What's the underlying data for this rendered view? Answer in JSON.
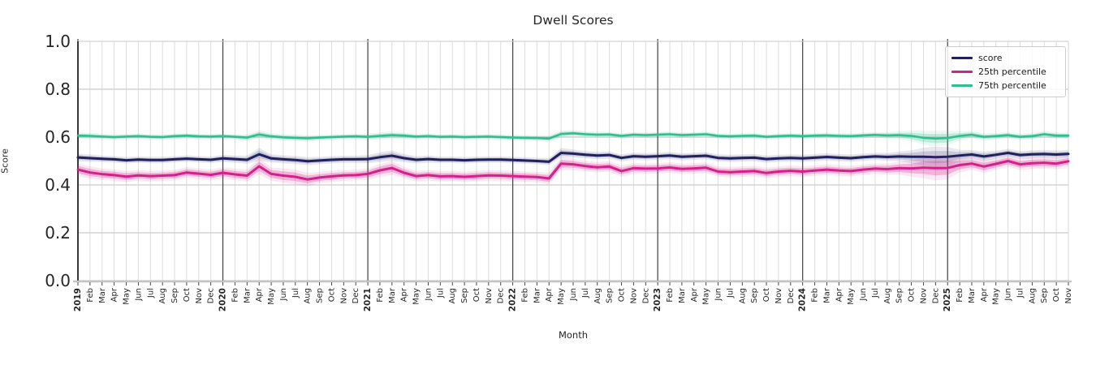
{
  "chart_data": {
    "type": "line",
    "title": "Dwell Scores",
    "xlabel": "Month",
    "ylabel": "Score",
    "ylim": [
      0.0,
      1.0
    ],
    "yticks": [
      0.0,
      0.2,
      0.4,
      0.6,
      0.8,
      1.0
    ],
    "grid": true,
    "legend_position": "upper-right",
    "x_tick_labels": [
      "2019",
      "Feb",
      "Mar",
      "Apr",
      "May",
      "Jun",
      "Jul",
      "Aug",
      "Sep",
      "Oct",
      "Nov",
      "Dec",
      "2020",
      "Feb",
      "Mar",
      "Apr",
      "May",
      "Jun",
      "Jul",
      "Aug",
      "Sep",
      "Oct",
      "Nov",
      "Dec",
      "2021",
      "Feb",
      "Mar",
      "Apr",
      "May",
      "Jun",
      "Jul",
      "Aug",
      "Sep",
      "Oct",
      "Nov",
      "Dec",
      "2022",
      "Feb",
      "Mar",
      "Apr",
      "May",
      "Jun",
      "Jul",
      "Aug",
      "Sep",
      "Oct",
      "Nov",
      "Dec",
      "2023",
      "Feb",
      "Mar",
      "Apr",
      "May",
      "Jun",
      "Jul",
      "Aug",
      "Sep",
      "Oct",
      "Nov",
      "Dec",
      "2024",
      "Feb",
      "Mar",
      "Apr",
      "May",
      "Jun",
      "Jul",
      "Aug",
      "Sep",
      "Oct",
      "Nov",
      "Dec",
      "2025",
      "Feb",
      "Mar",
      "Apr",
      "May",
      "Jun",
      "Jul",
      "Aug",
      "Sep",
      "Oct",
      "Nov"
    ],
    "series": [
      {
        "name": "score",
        "color": "#21205f",
        "band_opacity": 0.16,
        "values": [
          0.515,
          0.512,
          0.509,
          0.507,
          0.503,
          0.506,
          0.504,
          0.504,
          0.507,
          0.51,
          0.507,
          0.505,
          0.511,
          0.508,
          0.505,
          0.528,
          0.511,
          0.507,
          0.504,
          0.499,
          0.502,
          0.505,
          0.507,
          0.507,
          0.508,
          0.516,
          0.522,
          0.512,
          0.505,
          0.508,
          0.505,
          0.505,
          0.503,
          0.505,
          0.506,
          0.506,
          0.504,
          0.502,
          0.5,
          0.497,
          0.534,
          0.531,
          0.526,
          0.523,
          0.525,
          0.513,
          0.52,
          0.518,
          0.52,
          0.523,
          0.518,
          0.52,
          0.522,
          0.513,
          0.511,
          0.513,
          0.514,
          0.508,
          0.511,
          0.513,
          0.511,
          0.514,
          0.517,
          0.514,
          0.512,
          0.516,
          0.519,
          0.517,
          0.519,
          0.518,
          0.518,
          0.516,
          0.518,
          0.523,
          0.527,
          0.519,
          0.526,
          0.534,
          0.525,
          0.528,
          0.529,
          0.527,
          0.53
        ],
        "band": [
          0.01,
          0.009,
          0.008,
          0.008,
          0.008,
          0.008,
          0.008,
          0.008,
          0.008,
          0.008,
          0.008,
          0.008,
          0.009,
          0.009,
          0.01,
          0.016,
          0.01,
          0.01,
          0.01,
          0.01,
          0.009,
          0.009,
          0.009,
          0.009,
          0.01,
          0.012,
          0.013,
          0.01,
          0.009,
          0.009,
          0.008,
          0.008,
          0.008,
          0.008,
          0.008,
          0.008,
          0.008,
          0.008,
          0.008,
          0.009,
          0.012,
          0.01,
          0.009,
          0.009,
          0.009,
          0.009,
          0.009,
          0.009,
          0.009,
          0.009,
          0.009,
          0.009,
          0.009,
          0.009,
          0.009,
          0.009,
          0.009,
          0.009,
          0.009,
          0.009,
          0.009,
          0.009,
          0.009,
          0.009,
          0.009,
          0.009,
          0.009,
          0.01,
          0.012,
          0.016,
          0.022,
          0.026,
          0.024,
          0.014,
          0.011,
          0.012,
          0.01,
          0.01,
          0.01,
          0.01,
          0.01,
          0.01,
          0.01
        ]
      },
      {
        "name": "25th percentile",
        "color": "#d3208b",
        "band_opacity": 0.26,
        "values": [
          0.464,
          0.452,
          0.445,
          0.441,
          0.435,
          0.44,
          0.437,
          0.439,
          0.441,
          0.452,
          0.447,
          0.442,
          0.451,
          0.444,
          0.439,
          0.478,
          0.446,
          0.439,
          0.434,
          0.423,
          0.431,
          0.436,
          0.44,
          0.441,
          0.446,
          0.461,
          0.471,
          0.451,
          0.437,
          0.441,
          0.436,
          0.437,
          0.434,
          0.437,
          0.44,
          0.439,
          0.437,
          0.435,
          0.433,
          0.427,
          0.489,
          0.486,
          0.479,
          0.474,
          0.477,
          0.458,
          0.47,
          0.468,
          0.469,
          0.473,
          0.467,
          0.469,
          0.472,
          0.456,
          0.453,
          0.456,
          0.458,
          0.45,
          0.456,
          0.459,
          0.456,
          0.46,
          0.464,
          0.46,
          0.458,
          0.464,
          0.468,
          0.466,
          0.47,
          0.469,
          0.472,
          0.47,
          0.471,
          0.483,
          0.489,
          0.477,
          0.488,
          0.5,
          0.486,
          0.491,
          0.493,
          0.489,
          0.499
        ],
        "band": [
          0.016,
          0.015,
          0.014,
          0.014,
          0.014,
          0.013,
          0.013,
          0.013,
          0.013,
          0.013,
          0.013,
          0.013,
          0.014,
          0.014,
          0.015,
          0.02,
          0.016,
          0.018,
          0.018,
          0.016,
          0.014,
          0.014,
          0.013,
          0.013,
          0.014,
          0.016,
          0.017,
          0.014,
          0.013,
          0.013,
          0.013,
          0.013,
          0.013,
          0.013,
          0.013,
          0.013,
          0.013,
          0.013,
          0.013,
          0.014,
          0.016,
          0.014,
          0.013,
          0.013,
          0.013,
          0.014,
          0.013,
          0.013,
          0.013,
          0.013,
          0.013,
          0.013,
          0.013,
          0.013,
          0.013,
          0.013,
          0.013,
          0.013,
          0.013,
          0.013,
          0.013,
          0.013,
          0.013,
          0.013,
          0.013,
          0.013,
          0.013,
          0.014,
          0.016,
          0.02,
          0.026,
          0.03,
          0.028,
          0.018,
          0.015,
          0.016,
          0.014,
          0.014,
          0.014,
          0.014,
          0.014,
          0.014,
          0.014
        ]
      },
      {
        "name": "75th percentile",
        "color": "#2fbf8f",
        "band_opacity": 0.24,
        "values": [
          0.606,
          0.605,
          0.602,
          0.6,
          0.602,
          0.604,
          0.601,
          0.6,
          0.604,
          0.606,
          0.603,
          0.602,
          0.604,
          0.601,
          0.598,
          0.611,
          0.603,
          0.599,
          0.597,
          0.595,
          0.598,
          0.6,
          0.602,
          0.603,
          0.601,
          0.605,
          0.608,
          0.606,
          0.602,
          0.604,
          0.601,
          0.602,
          0.6,
          0.601,
          0.602,
          0.6,
          0.598,
          0.597,
          0.596,
          0.594,
          0.613,
          0.616,
          0.612,
          0.61,
          0.611,
          0.605,
          0.61,
          0.608,
          0.61,
          0.612,
          0.608,
          0.61,
          0.612,
          0.605,
          0.603,
          0.605,
          0.606,
          0.601,
          0.604,
          0.606,
          0.604,
          0.606,
          0.607,
          0.605,
          0.604,
          0.607,
          0.609,
          0.607,
          0.608,
          0.605,
          0.597,
          0.594,
          0.596,
          0.605,
          0.61,
          0.601,
          0.604,
          0.608,
          0.601,
          0.604,
          0.612,
          0.606,
          0.606
        ],
        "band": [
          0.008,
          0.008,
          0.007,
          0.007,
          0.007,
          0.007,
          0.007,
          0.007,
          0.007,
          0.007,
          0.007,
          0.007,
          0.007,
          0.007,
          0.008,
          0.01,
          0.008,
          0.008,
          0.008,
          0.008,
          0.007,
          0.007,
          0.007,
          0.007,
          0.008,
          0.009,
          0.009,
          0.008,
          0.007,
          0.007,
          0.007,
          0.007,
          0.007,
          0.007,
          0.007,
          0.007,
          0.007,
          0.007,
          0.007,
          0.008,
          0.009,
          0.008,
          0.007,
          0.007,
          0.007,
          0.007,
          0.007,
          0.007,
          0.007,
          0.007,
          0.007,
          0.007,
          0.007,
          0.007,
          0.007,
          0.007,
          0.007,
          0.007,
          0.007,
          0.007,
          0.007,
          0.007,
          0.007,
          0.007,
          0.007,
          0.007,
          0.007,
          0.008,
          0.01,
          0.013,
          0.017,
          0.019,
          0.018,
          0.011,
          0.009,
          0.009,
          0.008,
          0.008,
          0.008,
          0.008,
          0.008,
          0.008,
          0.008
        ]
      }
    ],
    "style": {
      "month_grid_color": "#dcdcdc",
      "year_grid_color": "#404040",
      "h_grid_color": "#cccccc",
      "left_spine_color": "#262626",
      "bottom_spine_color": "#c4c4c4",
      "frame_color": "#d4d4d4",
      "tick_text_color": "#262626"
    }
  }
}
